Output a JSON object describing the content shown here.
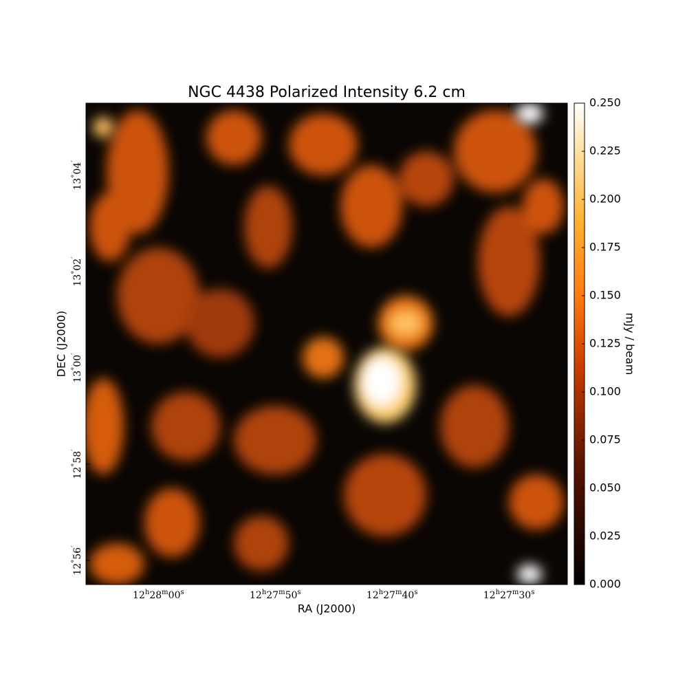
{
  "chart_data": {
    "type": "image",
    "title": "NGC 4438 Polarized Intensity 6.2 cm",
    "xlabel": "RA (J2000)",
    "ylabel": "DEC (J2000)",
    "xlim": [
      44886.2,
      44845.0
    ],
    "xticks": [
      {
        "value": 44880,
        "label": "12h28m00s"
      },
      {
        "value": 44870,
        "label": "12h27m50s"
      },
      {
        "value": 44860,
        "label": "12h27m40s"
      },
      {
        "value": 44850,
        "label": "12h27m30s"
      }
    ],
    "ylim": [
      775.5,
      785.5
    ],
    "yticks": [
      {
        "value": 784,
        "label": "13°04′"
      },
      {
        "value": 782,
        "label": "13°02′"
      },
      {
        "value": 780,
        "label": "13°00′"
      },
      {
        "value": 778,
        "label": "12°58′"
      },
      {
        "value": 776,
        "label": "12°56′"
      }
    ],
    "colorbar": {
      "label": "mJy / beam",
      "lim": [
        0,
        0.25
      ],
      "ticks": [
        {
          "value": 0,
          "label": "0.000"
        },
        {
          "value": 0.025,
          "label": "0.025"
        },
        {
          "value": 0.05,
          "label": "0.050"
        },
        {
          "value": 0.075,
          "label": "0.075"
        },
        {
          "value": 0.1,
          "label": "0.100"
        },
        {
          "value": 0.125,
          "label": "0.125"
        },
        {
          "value": 0.15,
          "label": "0.150"
        },
        {
          "value": 0.175,
          "label": "0.175"
        },
        {
          "value": 0.2,
          "label": "0.200"
        },
        {
          "value": 0.225,
          "label": "0.225"
        },
        {
          "value": 0.25,
          "label": "0.250"
        }
      ]
    }
  }
}
